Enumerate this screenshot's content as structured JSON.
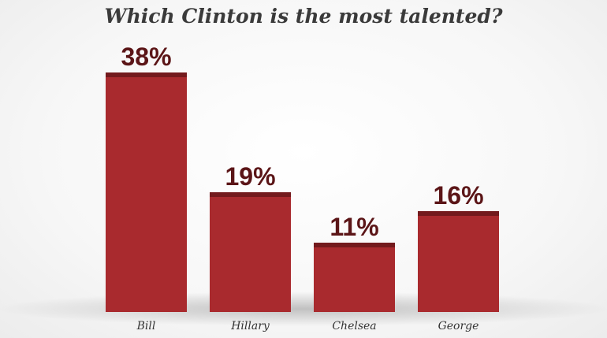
{
  "chart_data": {
    "type": "bar",
    "title": "Which Clinton is the most talented?",
    "categories": [
      "Bill",
      "Hillary",
      "Chelsea",
      "George"
    ],
    "values": [
      38,
      19,
      11,
      16
    ],
    "value_labels": [
      "38%",
      "19%",
      "11%",
      "16%"
    ],
    "ylim": [
      0,
      40
    ],
    "grid": false,
    "legend": "none",
    "colors": {
      "bar": "#a92a2e",
      "bar_cap": "#731a1d",
      "label": "#5b1517"
    }
  }
}
